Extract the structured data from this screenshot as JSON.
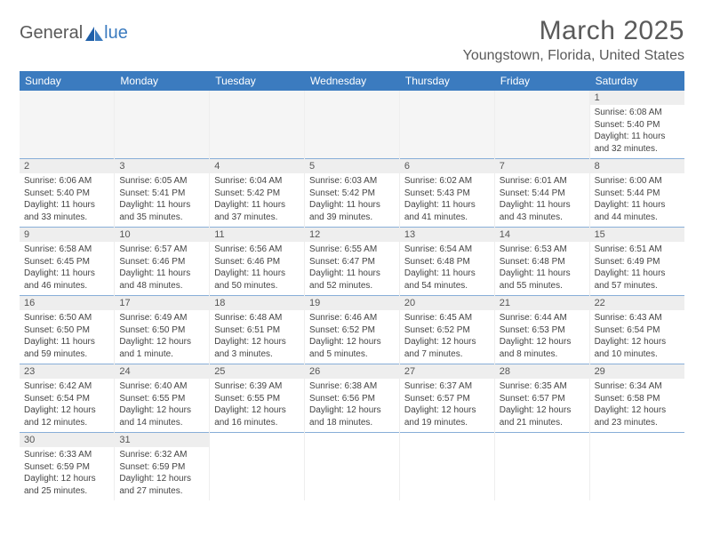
{
  "logo": {
    "text1": "General",
    "text2": "lue"
  },
  "title": "March 2025",
  "location": "Youngstown, Florida, United States",
  "headers": [
    "Sunday",
    "Monday",
    "Tuesday",
    "Wednesday",
    "Thursday",
    "Friday",
    "Saturday"
  ],
  "colors": {
    "header_bg": "#3b7bbf",
    "header_text": "#ffffff",
    "border": "#88aed8",
    "daynum_bg": "#eeeeee",
    "logo_gray": "#595959",
    "logo_blue": "#3b7bbf"
  },
  "weeks": [
    [
      {
        "n": "",
        "sr": "",
        "ss": "",
        "dl": ""
      },
      {
        "n": "",
        "sr": "",
        "ss": "",
        "dl": ""
      },
      {
        "n": "",
        "sr": "",
        "ss": "",
        "dl": ""
      },
      {
        "n": "",
        "sr": "",
        "ss": "",
        "dl": ""
      },
      {
        "n": "",
        "sr": "",
        "ss": "",
        "dl": ""
      },
      {
        "n": "",
        "sr": "",
        "ss": "",
        "dl": ""
      },
      {
        "n": "1",
        "sr": "Sunrise: 6:08 AM",
        "ss": "Sunset: 5:40 PM",
        "dl": "Daylight: 11 hours and 32 minutes."
      }
    ],
    [
      {
        "n": "2",
        "sr": "Sunrise: 6:06 AM",
        "ss": "Sunset: 5:40 PM",
        "dl": "Daylight: 11 hours and 33 minutes."
      },
      {
        "n": "3",
        "sr": "Sunrise: 6:05 AM",
        "ss": "Sunset: 5:41 PM",
        "dl": "Daylight: 11 hours and 35 minutes."
      },
      {
        "n": "4",
        "sr": "Sunrise: 6:04 AM",
        "ss": "Sunset: 5:42 PM",
        "dl": "Daylight: 11 hours and 37 minutes."
      },
      {
        "n": "5",
        "sr": "Sunrise: 6:03 AM",
        "ss": "Sunset: 5:42 PM",
        "dl": "Daylight: 11 hours and 39 minutes."
      },
      {
        "n": "6",
        "sr": "Sunrise: 6:02 AM",
        "ss": "Sunset: 5:43 PM",
        "dl": "Daylight: 11 hours and 41 minutes."
      },
      {
        "n": "7",
        "sr": "Sunrise: 6:01 AM",
        "ss": "Sunset: 5:44 PM",
        "dl": "Daylight: 11 hours and 43 minutes."
      },
      {
        "n": "8",
        "sr": "Sunrise: 6:00 AM",
        "ss": "Sunset: 5:44 PM",
        "dl": "Daylight: 11 hours and 44 minutes."
      }
    ],
    [
      {
        "n": "9",
        "sr": "Sunrise: 6:58 AM",
        "ss": "Sunset: 6:45 PM",
        "dl": "Daylight: 11 hours and 46 minutes."
      },
      {
        "n": "10",
        "sr": "Sunrise: 6:57 AM",
        "ss": "Sunset: 6:46 PM",
        "dl": "Daylight: 11 hours and 48 minutes."
      },
      {
        "n": "11",
        "sr": "Sunrise: 6:56 AM",
        "ss": "Sunset: 6:46 PM",
        "dl": "Daylight: 11 hours and 50 minutes."
      },
      {
        "n": "12",
        "sr": "Sunrise: 6:55 AM",
        "ss": "Sunset: 6:47 PM",
        "dl": "Daylight: 11 hours and 52 minutes."
      },
      {
        "n": "13",
        "sr": "Sunrise: 6:54 AM",
        "ss": "Sunset: 6:48 PM",
        "dl": "Daylight: 11 hours and 54 minutes."
      },
      {
        "n": "14",
        "sr": "Sunrise: 6:53 AM",
        "ss": "Sunset: 6:48 PM",
        "dl": "Daylight: 11 hours and 55 minutes."
      },
      {
        "n": "15",
        "sr": "Sunrise: 6:51 AM",
        "ss": "Sunset: 6:49 PM",
        "dl": "Daylight: 11 hours and 57 minutes."
      }
    ],
    [
      {
        "n": "16",
        "sr": "Sunrise: 6:50 AM",
        "ss": "Sunset: 6:50 PM",
        "dl": "Daylight: 11 hours and 59 minutes."
      },
      {
        "n": "17",
        "sr": "Sunrise: 6:49 AM",
        "ss": "Sunset: 6:50 PM",
        "dl": "Daylight: 12 hours and 1 minute."
      },
      {
        "n": "18",
        "sr": "Sunrise: 6:48 AM",
        "ss": "Sunset: 6:51 PM",
        "dl": "Daylight: 12 hours and 3 minutes."
      },
      {
        "n": "19",
        "sr": "Sunrise: 6:46 AM",
        "ss": "Sunset: 6:52 PM",
        "dl": "Daylight: 12 hours and 5 minutes."
      },
      {
        "n": "20",
        "sr": "Sunrise: 6:45 AM",
        "ss": "Sunset: 6:52 PM",
        "dl": "Daylight: 12 hours and 7 minutes."
      },
      {
        "n": "21",
        "sr": "Sunrise: 6:44 AM",
        "ss": "Sunset: 6:53 PM",
        "dl": "Daylight: 12 hours and 8 minutes."
      },
      {
        "n": "22",
        "sr": "Sunrise: 6:43 AM",
        "ss": "Sunset: 6:54 PM",
        "dl": "Daylight: 12 hours and 10 minutes."
      }
    ],
    [
      {
        "n": "23",
        "sr": "Sunrise: 6:42 AM",
        "ss": "Sunset: 6:54 PM",
        "dl": "Daylight: 12 hours and 12 minutes."
      },
      {
        "n": "24",
        "sr": "Sunrise: 6:40 AM",
        "ss": "Sunset: 6:55 PM",
        "dl": "Daylight: 12 hours and 14 minutes."
      },
      {
        "n": "25",
        "sr": "Sunrise: 6:39 AM",
        "ss": "Sunset: 6:55 PM",
        "dl": "Daylight: 12 hours and 16 minutes."
      },
      {
        "n": "26",
        "sr": "Sunrise: 6:38 AM",
        "ss": "Sunset: 6:56 PM",
        "dl": "Daylight: 12 hours and 18 minutes."
      },
      {
        "n": "27",
        "sr": "Sunrise: 6:37 AM",
        "ss": "Sunset: 6:57 PM",
        "dl": "Daylight: 12 hours and 19 minutes."
      },
      {
        "n": "28",
        "sr": "Sunrise: 6:35 AM",
        "ss": "Sunset: 6:57 PM",
        "dl": "Daylight: 12 hours and 21 minutes."
      },
      {
        "n": "29",
        "sr": "Sunrise: 6:34 AM",
        "ss": "Sunset: 6:58 PM",
        "dl": "Daylight: 12 hours and 23 minutes."
      }
    ],
    [
      {
        "n": "30",
        "sr": "Sunrise: 6:33 AM",
        "ss": "Sunset: 6:59 PM",
        "dl": "Daylight: 12 hours and 25 minutes."
      },
      {
        "n": "31",
        "sr": "Sunrise: 6:32 AM",
        "ss": "Sunset: 6:59 PM",
        "dl": "Daylight: 12 hours and 27 minutes."
      },
      {
        "n": "",
        "sr": "",
        "ss": "",
        "dl": ""
      },
      {
        "n": "",
        "sr": "",
        "ss": "",
        "dl": ""
      },
      {
        "n": "",
        "sr": "",
        "ss": "",
        "dl": ""
      },
      {
        "n": "",
        "sr": "",
        "ss": "",
        "dl": ""
      },
      {
        "n": "",
        "sr": "",
        "ss": "",
        "dl": ""
      }
    ]
  ]
}
